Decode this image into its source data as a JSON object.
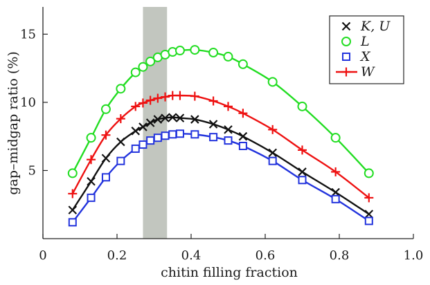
{
  "chart_data": {
    "type": "line",
    "xlabel": "chitin filling fraction",
    "ylabel": "gap–midgap ratio (%)",
    "xlim": [
      0,
      1.0
    ],
    "ylim": [
      0,
      17
    ],
    "xticks": [
      0,
      0.2,
      0.4,
      0.6,
      0.8,
      1.0
    ],
    "xtick_labels": [
      "0",
      "0.2",
      "0.4",
      "0.6",
      "0.8",
      "1.0"
    ],
    "yticks": [
      5,
      10,
      15
    ],
    "ytick_labels": [
      "5",
      "10",
      "15"
    ],
    "grid": false,
    "legend_position": "top-right",
    "shaded_band": {
      "x_range": [
        0.27,
        0.335
      ],
      "color": "#c2c6bf"
    },
    "series": [
      {
        "name": "K, U",
        "color": "#111111",
        "marker": "x",
        "x": [
          0.08,
          0.13,
          0.17,
          0.21,
          0.25,
          0.27,
          0.29,
          0.31,
          0.33,
          0.35,
          0.37,
          0.41,
          0.46,
          0.5,
          0.54,
          0.62,
          0.7,
          0.79,
          0.88
        ],
        "y": [
          2.1,
          4.2,
          5.9,
          7.1,
          7.9,
          8.2,
          8.5,
          8.75,
          8.85,
          8.9,
          8.85,
          8.75,
          8.4,
          8.0,
          7.5,
          6.3,
          4.9,
          3.4,
          1.8
        ]
      },
      {
        "name": "L",
        "color": "#22dd22",
        "marker": "circle",
        "x": [
          0.08,
          0.13,
          0.17,
          0.21,
          0.25,
          0.27,
          0.29,
          0.31,
          0.33,
          0.35,
          0.37,
          0.41,
          0.46,
          0.5,
          0.54,
          0.62,
          0.7,
          0.79,
          0.88
        ],
        "y": [
          4.8,
          7.4,
          9.5,
          11.0,
          12.2,
          12.6,
          13.0,
          13.3,
          13.5,
          13.7,
          13.8,
          13.85,
          13.65,
          13.35,
          12.8,
          11.5,
          9.7,
          7.4,
          4.8
        ]
      },
      {
        "name": "X",
        "color": "#2233dd",
        "marker": "square",
        "x": [
          0.08,
          0.13,
          0.17,
          0.21,
          0.25,
          0.27,
          0.29,
          0.31,
          0.33,
          0.35,
          0.37,
          0.41,
          0.46,
          0.5,
          0.54,
          0.62,
          0.7,
          0.79,
          0.88
        ],
        "y": [
          1.2,
          3.0,
          4.5,
          5.7,
          6.6,
          6.9,
          7.2,
          7.4,
          7.55,
          7.65,
          7.7,
          7.65,
          7.45,
          7.2,
          6.8,
          5.7,
          4.3,
          2.9,
          1.3
        ]
      },
      {
        "name": "W",
        "color": "#ee1111",
        "marker": "plus",
        "x": [
          0.08,
          0.13,
          0.17,
          0.21,
          0.25,
          0.27,
          0.29,
          0.31,
          0.33,
          0.35,
          0.37,
          0.41,
          0.46,
          0.5,
          0.54,
          0.62,
          0.7,
          0.79,
          0.88
        ],
        "y": [
          3.3,
          5.8,
          7.6,
          8.8,
          9.7,
          9.95,
          10.15,
          10.3,
          10.4,
          10.5,
          10.5,
          10.45,
          10.1,
          9.7,
          9.2,
          8.0,
          6.5,
          4.9,
          3.0
        ]
      }
    ]
  }
}
